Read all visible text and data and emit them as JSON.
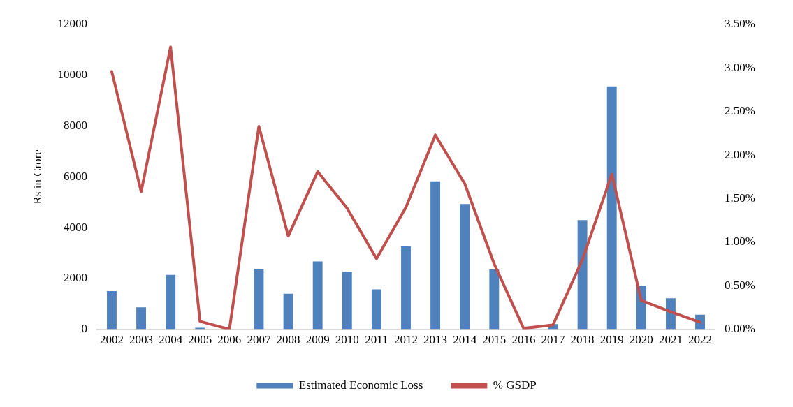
{
  "chart_data": {
    "type": "bar",
    "ylabel": "Rs in Crore",
    "categories": [
      "2002",
      "2003",
      "2004",
      "2005",
      "2006",
      "2007",
      "2008",
      "2009",
      "2010",
      "2011",
      "2012",
      "2013",
      "2014",
      "2015",
      "2016",
      "2017",
      "2018",
      "2019",
      "2020",
      "2021",
      "2022"
    ],
    "series": [
      {
        "name": "Estimated Economic Loss",
        "color": "#4f81bd",
        "values": [
          1500,
          860,
          2140,
          60,
          0,
          2380,
          1400,
          2670,
          2260,
          1570,
          3270,
          5820,
          4930,
          2350,
          0,
          200,
          4300,
          9560,
          1720,
          1220,
          570
        ]
      },
      {
        "name": "% GSDP",
        "type": "line",
        "axis": "y2",
        "color": "#c0504d",
        "values": [
          2.96,
          1.58,
          3.24,
          0.09,
          0,
          2.33,
          1.07,
          1.81,
          1.39,
          0.81,
          1.4,
          2.23,
          1.67,
          0.75,
          0.01,
          0.05,
          0.8,
          1.78,
          0.33,
          0.2,
          0.08
        ]
      }
    ],
    "ylim": [
      0,
      12000
    ],
    "yticks": [
      0,
      2000,
      4000,
      6000,
      8000,
      10000,
      12000
    ],
    "y2lim": [
      0,
      3.5
    ],
    "y2ticks": [
      {
        "value": 0,
        "label": "0.00%"
      },
      {
        "value": 0.5,
        "label": "0.50%"
      },
      {
        "value": 1,
        "label": "1.00%"
      },
      {
        "value": 1.5,
        "label": "1.50%"
      },
      {
        "value": 2,
        "label": "2.00%"
      },
      {
        "value": 2.5,
        "label": "2.50%"
      },
      {
        "value": 3,
        "label": "3.00%"
      },
      {
        "value": 3.5,
        "label": "3.50%"
      }
    ],
    "grid": false,
    "legend": "bottom",
    "marker": "none"
  }
}
